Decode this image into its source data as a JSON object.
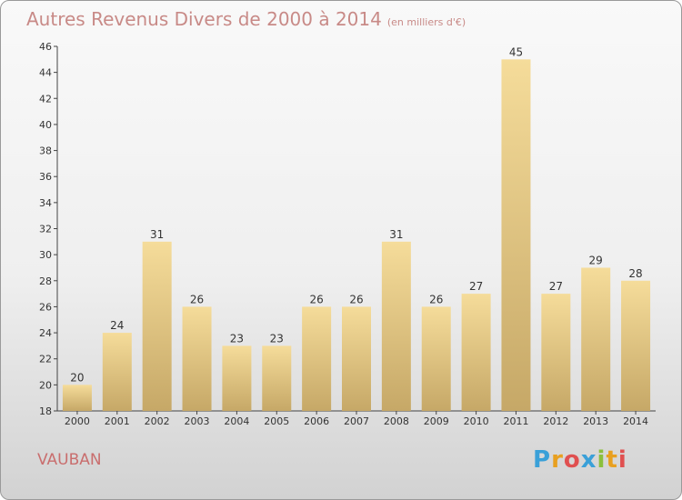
{
  "title": "Autres Revenus Divers de 2000 à 2014",
  "unit_note": "(en milliers d'€)",
  "location": "VAUBAN",
  "logo": {
    "letters": [
      "P",
      "r",
      "o",
      "x",
      "i",
      "t",
      "i"
    ],
    "colors": [
      "#3aa0d8",
      "#e8a020",
      "#e05050",
      "#3aa0d8",
      "#8bbf3c",
      "#e8a020",
      "#e05050"
    ]
  },
  "colors": {
    "bar_top": "#f5dc9a",
    "bar_bottom": "#c6a867",
    "title": "#c88a87",
    "location": "#c96e6e"
  },
  "chart_data": {
    "type": "bar",
    "categories": [
      "2000",
      "2001",
      "2002",
      "2003",
      "2004",
      "2005",
      "2006",
      "2007",
      "2008",
      "2009",
      "2010",
      "2011",
      "2012",
      "2013",
      "2014"
    ],
    "values": [
      20,
      24,
      31,
      26,
      23,
      23,
      26,
      26,
      31,
      26,
      27,
      45,
      27,
      29,
      28
    ],
    "ylim": [
      18,
      46
    ],
    "yticks": [
      18,
      20,
      22,
      24,
      26,
      28,
      30,
      32,
      34,
      36,
      38,
      40,
      42,
      44,
      46
    ],
    "grid": false,
    "data_labels": true
  }
}
